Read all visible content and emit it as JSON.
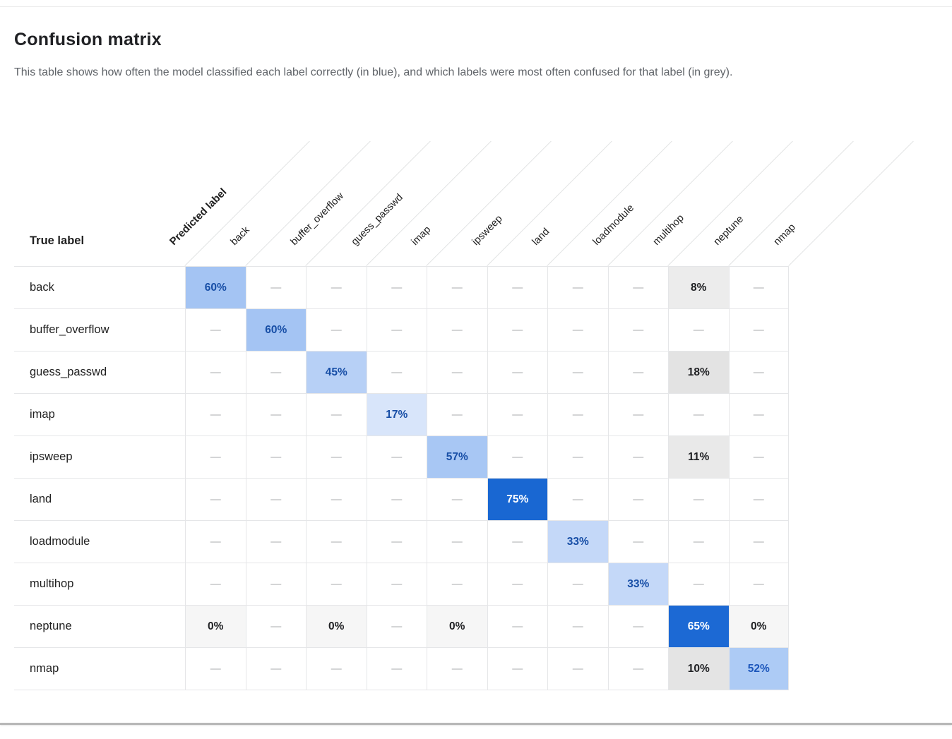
{
  "page": {
    "title": "Confusion matrix",
    "subtitle": "This table shows how often the model classified each label correctly (in blue), and which labels were most often confused for that label (in grey)."
  },
  "matrix": {
    "corner_label": "Predicted label",
    "row_axis_label": "True label",
    "empty_marker": "—",
    "columns": [
      "back",
      "buffer_overflow",
      "guess_passwd",
      "imap",
      "ipsweep",
      "land",
      "loadmodule",
      "multihop",
      "neptune",
      "nmap"
    ],
    "rows": [
      {
        "label": "back",
        "cells": [
          {
            "v": "60%",
            "bg": "#A4C4F3",
            "fg": "#174EA6"
          },
          null,
          null,
          null,
          null,
          null,
          null,
          null,
          {
            "v": "8%",
            "bg": "#ECECEC",
            "fg": "#202124"
          },
          null
        ]
      },
      {
        "label": "buffer_overflow",
        "cells": [
          null,
          {
            "v": "60%",
            "bg": "#A4C4F3",
            "fg": "#174EA6"
          },
          null,
          null,
          null,
          null,
          null,
          null,
          null,
          null
        ]
      },
      {
        "label": "guess_passwd",
        "cells": [
          null,
          null,
          {
            "v": "45%",
            "bg": "#B7D0F6",
            "fg": "#174EA6"
          },
          null,
          null,
          null,
          null,
          null,
          {
            "v": "18%",
            "bg": "#E3E3E3",
            "fg": "#202124"
          },
          null
        ]
      },
      {
        "label": "imap",
        "cells": [
          null,
          null,
          null,
          {
            "v": "17%",
            "bg": "#D8E5FA",
            "fg": "#174EA6"
          },
          null,
          null,
          null,
          null,
          null,
          null
        ]
      },
      {
        "label": "ipsweep",
        "cells": [
          null,
          null,
          null,
          null,
          {
            "v": "57%",
            "bg": "#A8C7F4",
            "fg": "#174EA6"
          },
          null,
          null,
          null,
          {
            "v": "11%",
            "bg": "#E9E9E9",
            "fg": "#202124"
          },
          null
        ]
      },
      {
        "label": "land",
        "cells": [
          null,
          null,
          null,
          null,
          null,
          {
            "v": "75%",
            "bg": "#1967D2",
            "fg": "#FFFFFF"
          },
          null,
          null,
          null,
          null
        ]
      },
      {
        "label": "loadmodule",
        "cells": [
          null,
          null,
          null,
          null,
          null,
          null,
          {
            "v": "33%",
            "bg": "#C4D8F8",
            "fg": "#174EA6"
          },
          null,
          null,
          null
        ]
      },
      {
        "label": "multihop",
        "cells": [
          null,
          null,
          null,
          null,
          null,
          null,
          null,
          {
            "v": "33%",
            "bg": "#C4D8F8",
            "fg": "#174EA6"
          },
          null,
          null
        ]
      },
      {
        "label": "neptune",
        "cells": [
          {
            "v": "0%",
            "bg": "#F6F6F6",
            "fg": "#202124"
          },
          null,
          {
            "v": "0%",
            "bg": "#F6F6F6",
            "fg": "#202124"
          },
          null,
          {
            "v": "0%",
            "bg": "#F6F6F6",
            "fg": "#202124"
          },
          null,
          null,
          null,
          {
            "v": "65%",
            "bg": "#1C69D4",
            "fg": "#FFFFFF"
          },
          {
            "v": "0%",
            "bg": "#F6F6F6",
            "fg": "#202124"
          }
        ]
      },
      {
        "label": "nmap",
        "cells": [
          null,
          null,
          null,
          null,
          null,
          null,
          null,
          null,
          {
            "v": "10%",
            "bg": "#E4E4E4",
            "fg": "#202124"
          },
          {
            "v": "52%",
            "bg": "#ADCBF5",
            "fg": "#1C56BB"
          }
        ]
      }
    ]
  },
  "chart_data": {
    "type": "heatmap",
    "title": "Confusion matrix",
    "xlabel": "Predicted label",
    "ylabel": "True label",
    "categories_x": [
      "back",
      "buffer_overflow",
      "guess_passwd",
      "imap",
      "ipsweep",
      "land",
      "loadmodule",
      "multihop",
      "neptune",
      "nmap"
    ],
    "categories_y": [
      "back",
      "buffer_overflow",
      "guess_passwd",
      "imap",
      "ipsweep",
      "land",
      "loadmodule",
      "multihop",
      "neptune",
      "nmap"
    ],
    "values_percent": [
      [
        60,
        null,
        null,
        null,
        null,
        null,
        null,
        null,
        8,
        null
      ],
      [
        null,
        60,
        null,
        null,
        null,
        null,
        null,
        null,
        null,
        null
      ],
      [
        null,
        null,
        45,
        null,
        null,
        null,
        null,
        null,
        18,
        null
      ],
      [
        null,
        null,
        null,
        17,
        null,
        null,
        null,
        null,
        null,
        null
      ],
      [
        null,
        null,
        null,
        null,
        57,
        null,
        null,
        null,
        11,
        null
      ],
      [
        null,
        null,
        null,
        null,
        null,
        75,
        null,
        null,
        null,
        null
      ],
      [
        null,
        null,
        null,
        null,
        null,
        null,
        33,
        null,
        null,
        null
      ],
      [
        null,
        null,
        null,
        null,
        null,
        null,
        null,
        33,
        null,
        null
      ],
      [
        0,
        null,
        0,
        null,
        0,
        null,
        null,
        null,
        65,
        0
      ],
      [
        null,
        null,
        null,
        null,
        null,
        null,
        null,
        null,
        10,
        52
      ]
    ]
  },
  "colors": {
    "correct_dark_blue": "#1967D2",
    "correct_light_blue": "#A4C4F3",
    "lightest_blue": "#D8E5FA",
    "confused_grey": "#E3E3E3",
    "blue_text": "#174EA6",
    "grid_border": "#E5E6E8",
    "diagonal_line": "#E2E3E4",
    "dash": "#A8ABAE",
    "subtitle_text": "#5F6368",
    "title_text": "#202124"
  }
}
